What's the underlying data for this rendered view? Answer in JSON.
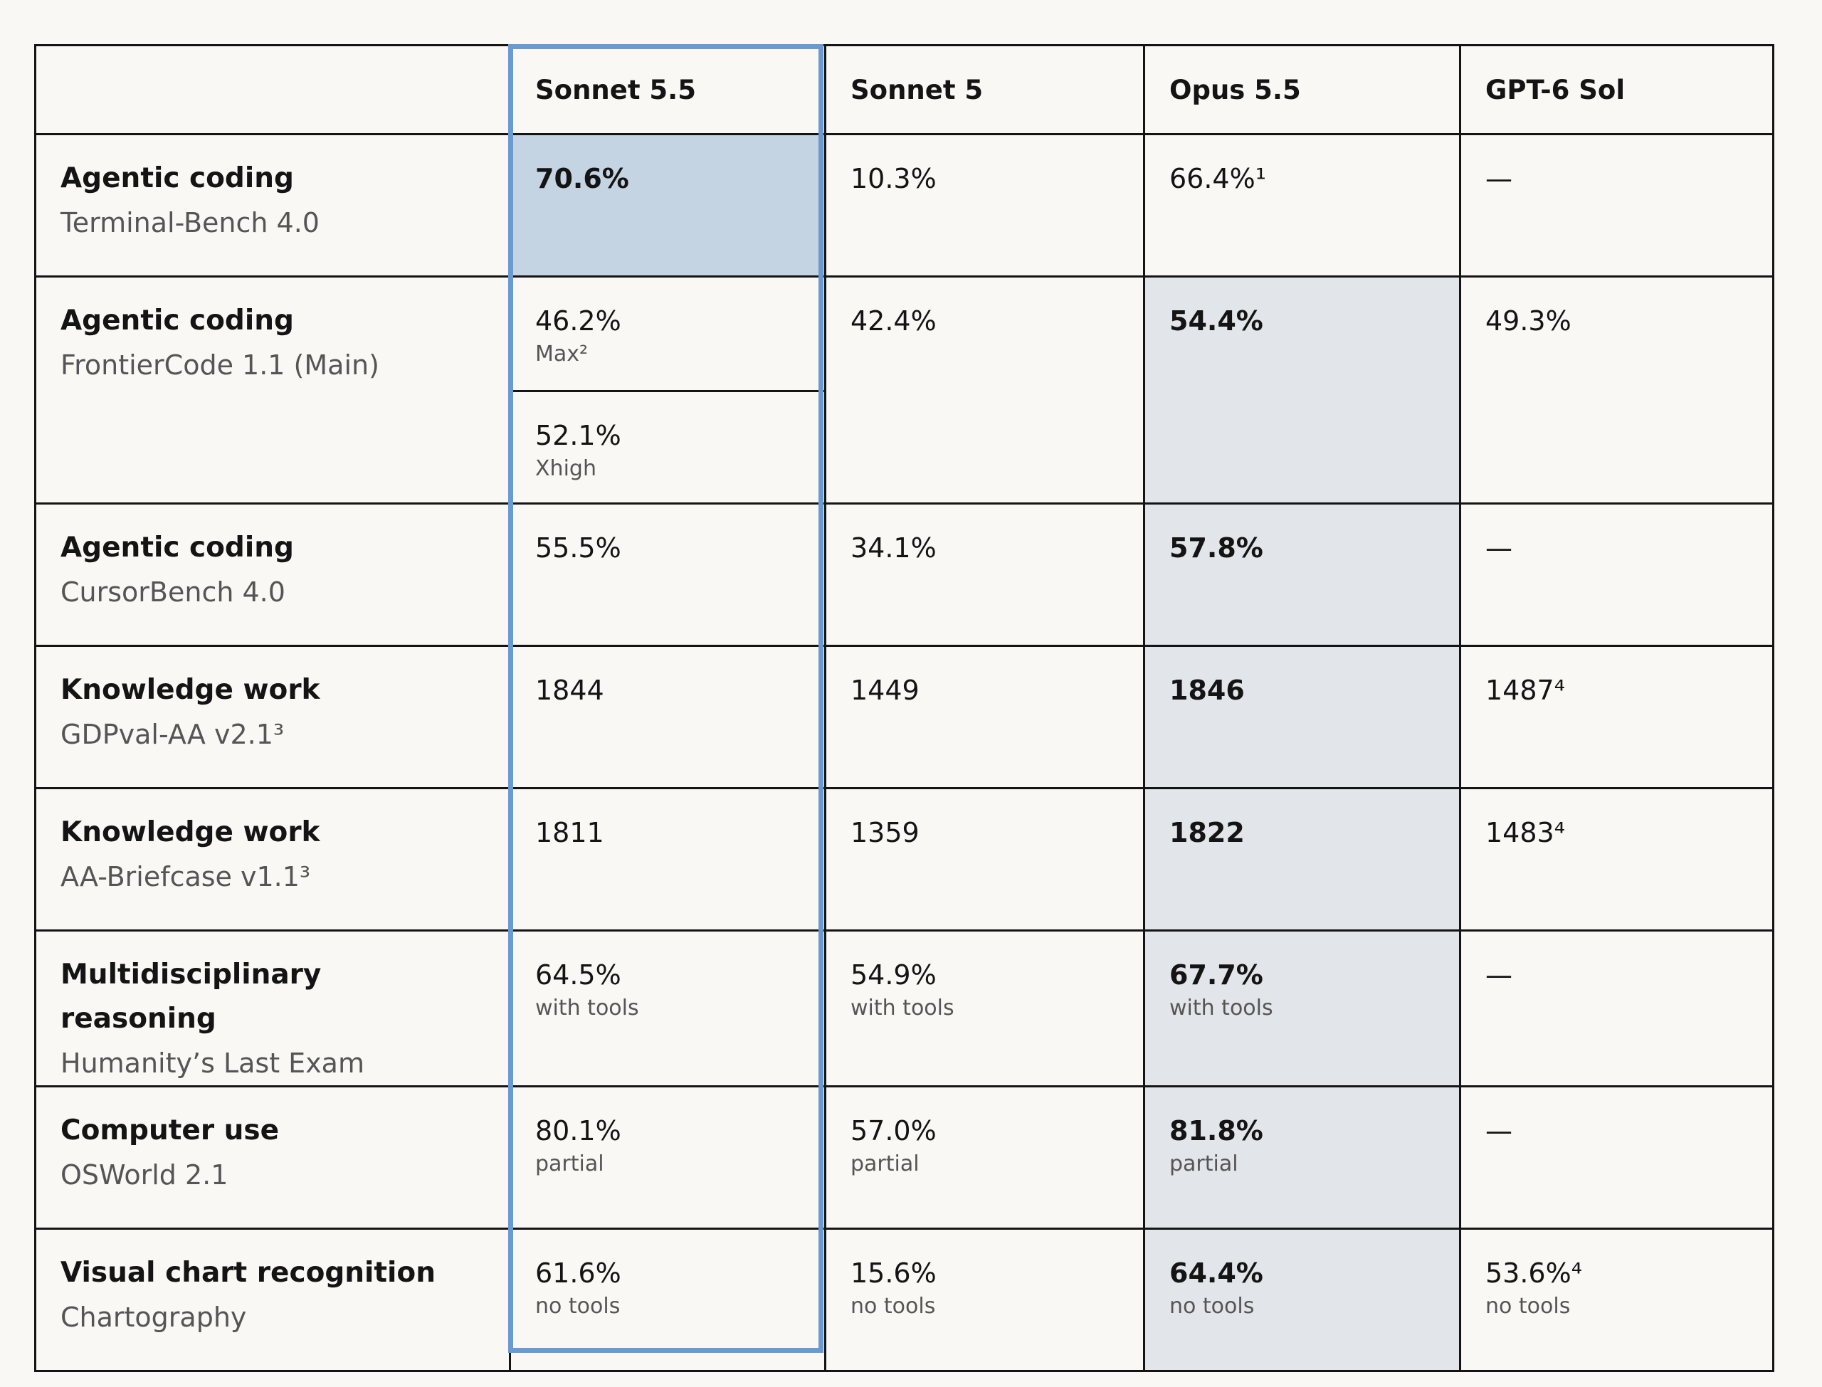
{
  "columns": [
    "",
    "Sonnet 5.5",
    "Sonnet 5",
    "Opus 5.5",
    "GPT-6 Sol"
  ],
  "rows": [
    {
      "category": "Agentic coding",
      "benchmark": "Terminal-Bench 4.0",
      "cells": [
        {
          "value": "70.6%",
          "note": "",
          "best": true
        },
        {
          "value": "10.3%",
          "note": ""
        },
        {
          "value": "66.4%¹",
          "note": ""
        },
        {
          "value": "—",
          "note": ""
        }
      ]
    },
    {
      "category": "Agentic coding",
      "benchmark": "FrontierCode 1.1 (Main)",
      "cells": [
        {
          "value": "46.2%",
          "note": "Max²",
          "value2": "52.1%",
          "note2": "Xhigh"
        },
        {
          "value": "42.4%",
          "note": ""
        },
        {
          "value": "54.4%",
          "note": "",
          "best": true
        },
        {
          "value": "49.3%",
          "note": ""
        }
      ]
    },
    {
      "category": "Agentic coding",
      "benchmark": "CursorBench 4.0",
      "cells": [
        {
          "value": "55.5%",
          "note": ""
        },
        {
          "value": "34.1%",
          "note": ""
        },
        {
          "value": "57.8%",
          "note": "",
          "best": true
        },
        {
          "value": "—",
          "note": ""
        }
      ]
    },
    {
      "category": "Knowledge work",
      "benchmark": "GDPval-AA v2.1³",
      "cells": [
        {
          "value": "1844",
          "note": ""
        },
        {
          "value": "1449",
          "note": ""
        },
        {
          "value": "1846",
          "note": "",
          "best": true
        },
        {
          "value": "1487⁴",
          "note": ""
        }
      ]
    },
    {
      "category": "Knowledge work",
      "benchmark": "AA-Briefcase v1.1³",
      "cells": [
        {
          "value": "1811",
          "note": ""
        },
        {
          "value": "1359",
          "note": ""
        },
        {
          "value": "1822",
          "note": "",
          "best": true
        },
        {
          "value": "1483⁴",
          "note": ""
        }
      ]
    },
    {
      "category": "Multidisciplinary reasoning",
      "benchmark": "Humanity’s Last Exam",
      "cells": [
        {
          "value": "64.5%",
          "note": "with tools"
        },
        {
          "value": "54.9%",
          "note": "with tools"
        },
        {
          "value": "67.7%",
          "note": "with tools",
          "best": true
        },
        {
          "value": "—",
          "note": ""
        }
      ]
    },
    {
      "category": "Computer use",
      "benchmark": "OSWorld 2.1",
      "cells": [
        {
          "value": "80.1%",
          "note": "partial"
        },
        {
          "value": "57.0%",
          "note": "partial"
        },
        {
          "value": "81.8%",
          "note": "partial",
          "best": true
        },
        {
          "value": "—",
          "note": ""
        }
      ]
    },
    {
      "category": "Visual chart recognition",
      "benchmark": "Chartography",
      "cells": [
        {
          "value": "61.6%",
          "note": "no tools"
        },
        {
          "value": "15.6%",
          "note": "no tools"
        },
        {
          "value": "64.4%",
          "note": "no tools",
          "best": true
        },
        {
          "value": "53.6%⁴",
          "note": "no tools"
        }
      ]
    }
  ],
  "colors": {
    "sonnet_highlight_border": "#6a9ad0",
    "sonnet_best_fill": "#c5d4e2",
    "opus_best_fill": "#e2e5e9",
    "background": "#f9f8f4"
  }
}
